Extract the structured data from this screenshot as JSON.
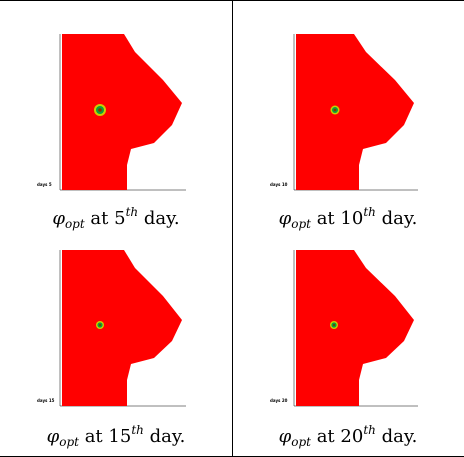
{
  "figures": [
    {
      "day_label": "days 5",
      "caption": {
        "symbol": "φ",
        "subscript": "opt",
        "at": "at",
        "number": "5",
        "superscript": "th",
        "unit": "day."
      }
    },
    {
      "day_label": "days 10",
      "caption": {
        "symbol": "φ",
        "subscript": "opt",
        "at": "at",
        "number": "10",
        "superscript": "th",
        "unit": "day."
      }
    },
    {
      "day_label": "days 15",
      "caption": {
        "symbol": "φ",
        "subscript": "opt",
        "at": "at",
        "number": "15",
        "superscript": "th",
        "unit": "day."
      }
    },
    {
      "day_label": "days 20",
      "caption": {
        "symbol": "φ",
        "subscript": "opt",
        "at": "at",
        "number": "20",
        "superscript": "th",
        "unit": "day."
      }
    }
  ],
  "colors": {
    "domain": "#ff0000",
    "spot_outer": "#c8d000",
    "spot_inner": "#0aa040",
    "spot_core": "#7a3a00"
  }
}
